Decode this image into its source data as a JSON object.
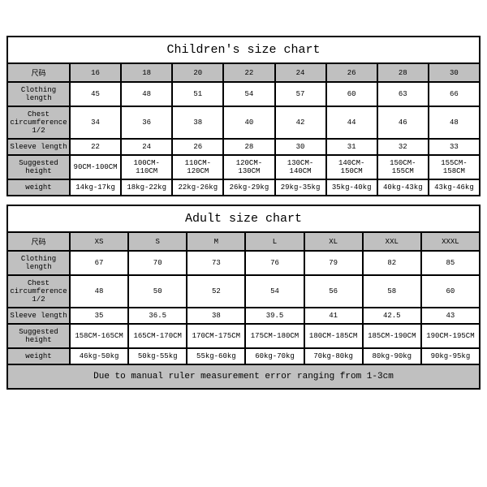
{
  "children": {
    "title": "Children's size chart",
    "header_label": "尺码",
    "sizes": [
      "16",
      "18",
      "20",
      "22",
      "24",
      "26",
      "28",
      "30"
    ],
    "rows": [
      {
        "label": "Clothing length",
        "cells": [
          "45",
          "48",
          "51",
          "54",
          "57",
          "60",
          "63",
          "66"
        ]
      },
      {
        "label": "Chest circumference 1/2",
        "cells": [
          "34",
          "36",
          "38",
          "40",
          "42",
          "44",
          "46",
          "48"
        ]
      },
      {
        "label": "Sleeve length",
        "cells": [
          "22",
          "24",
          "26",
          "28",
          "30",
          "31",
          "32",
          "33"
        ]
      },
      {
        "label": "Suggested height",
        "cells": [
          "90CM-100CM",
          "100CM-110CM",
          "110CM-120CM",
          "120CM-130CM",
          "130CM-140CM",
          "140CM-150CM",
          "150CM-155CM",
          "155CM-158CM"
        ]
      },
      {
        "label": "weight",
        "cells": [
          "14kg-17kg",
          "18kg-22kg",
          "22kg-26kg",
          "26kg-29kg",
          "29kg-35kg",
          "35kg-40kg",
          "40kg-43kg",
          "43kg-46kg"
        ]
      }
    ]
  },
  "adult": {
    "title": "Adult size chart",
    "header_label": "尺码",
    "sizes": [
      "XS",
      "S",
      "M",
      "L",
      "XL",
      "XXL",
      "XXXL"
    ],
    "rows": [
      {
        "label": "Clothing length",
        "cells": [
          "67",
          "70",
          "73",
          "76",
          "79",
          "82",
          "85"
        ]
      },
      {
        "label": "Chest circumference 1/2",
        "cells": [
          "48",
          "50",
          "52",
          "54",
          "56",
          "58",
          "60"
        ]
      },
      {
        "label": "Sleeve length",
        "cells": [
          "35",
          "36.5",
          "38",
          "39.5",
          "41",
          "42.5",
          "43"
        ]
      },
      {
        "label": "Suggested height",
        "cells": [
          "158CM-165CM",
          "165CM-170CM",
          "170CM-175CM",
          "175CM-180CM",
          "180CM-185CM",
          "185CM-190CM",
          "190CM-195CM"
        ]
      },
      {
        "label": "weight",
        "cells": [
          "46kg-50kg",
          "50kg-55kg",
          "55kg-60kg",
          "60kg-70kg",
          "70kg-80kg",
          "80kg-90kg",
          "90kg-95kg"
        ]
      }
    ],
    "footer": "Due to manual ruler measurement error ranging from 1-3cm"
  },
  "style": {
    "header_bg": "#c0c0c0",
    "cell_bg": "#ffffff",
    "border_color": "#000000",
    "font": "Courier New"
  }
}
